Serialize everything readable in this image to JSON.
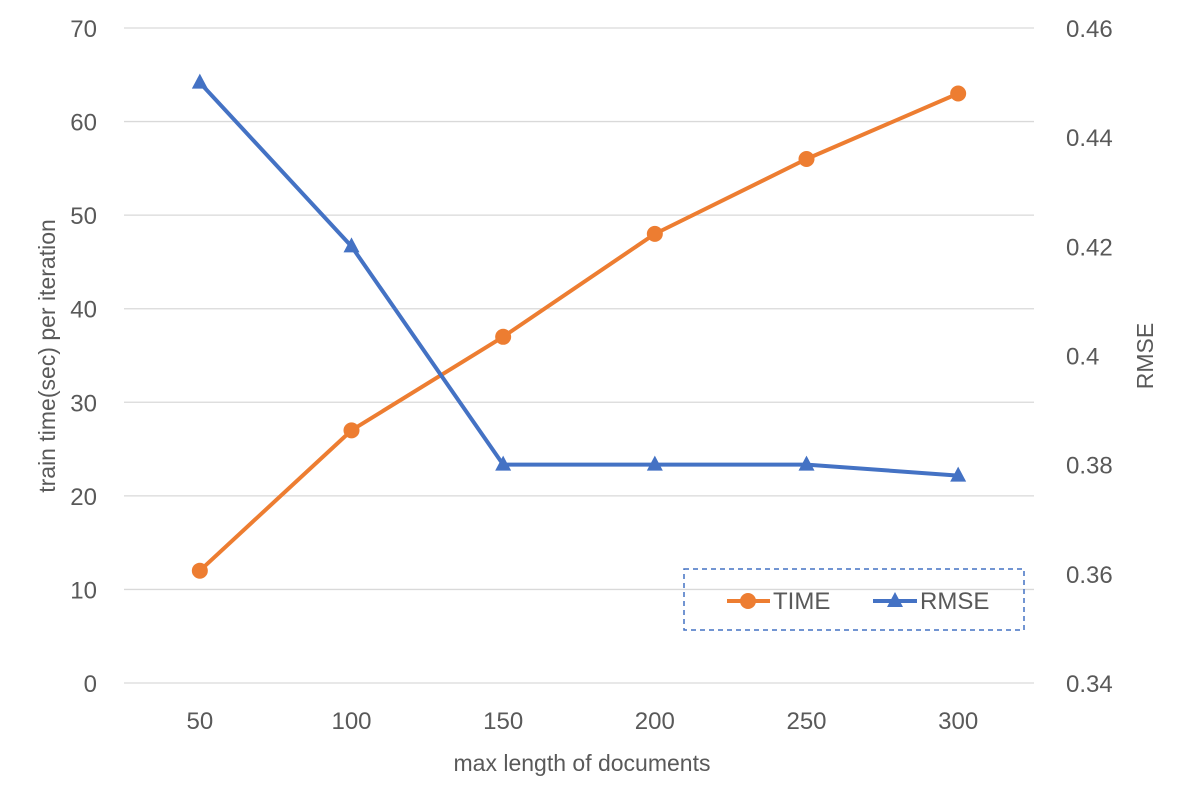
{
  "chart_data": {
    "type": "line",
    "title": "",
    "xlabel": "max length of documents",
    "ylabel": "train time(sec) per iteration",
    "y2label": "RMSE",
    "categories": [
      "50",
      "100",
      "150",
      "200",
      "250",
      "300"
    ],
    "ylim": [
      0,
      70
    ],
    "yticks": [
      "0",
      "10",
      "20",
      "30",
      "40",
      "50",
      "60",
      "70"
    ],
    "y2lim": [
      0.34,
      0.46
    ],
    "y2ticks": [
      "0.34",
      "0.36",
      "0.38",
      "0.4",
      "0.42",
      "0.44",
      "0.46"
    ],
    "grid": true,
    "legend_position": "bottom-right",
    "series": [
      {
        "name": "TIME",
        "axis": "left",
        "marker": "circle",
        "color": "#ED7D31",
        "values": [
          12,
          27,
          37,
          48,
          56,
          63
        ]
      },
      {
        "name": "RMSE",
        "axis": "right",
        "marker": "triangle",
        "color": "#4472C4",
        "values": [
          0.45,
          0.42,
          0.38,
          0.38,
          0.38,
          0.378
        ]
      }
    ],
    "colors": {
      "grid": "#D9D9D9",
      "text": "#595959",
      "legend_border": "#4472C4"
    }
  }
}
